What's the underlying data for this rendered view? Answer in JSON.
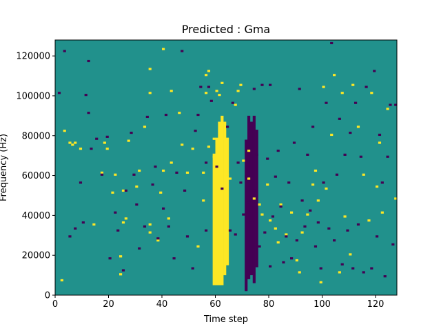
{
  "chart_data": {
    "type": "heatmap",
    "title": "Predicted : Gma",
    "xlabel": "Time step",
    "ylabel": "Frequency (Hz)",
    "xlim": [
      0,
      128
    ],
    "ylim": [
      0,
      128000
    ],
    "x_ticks": [
      0,
      20,
      40,
      60,
      80,
      100,
      120
    ],
    "y_ticks": [
      0,
      20000,
      40000,
      60000,
      80000,
      100000,
      120000
    ],
    "grid": false,
    "legend": "none",
    "colormap": "viridis",
    "levels": {
      "low": -1,
      "mid": 0,
      "high": 1
    },
    "colors": {
      "low": "#440154",
      "mid": "#21918c",
      "high": "#fde725"
    },
    "grid_shape": {
      "time_steps": 128,
      "freq_bins": 128
    },
    "freq_bin_hz": 1000,
    "cells": {
      "high": [
        [
          2,
          7
        ],
        [
          6,
          75
        ],
        [
          3,
          82
        ],
        [
          5,
          76
        ],
        [
          7,
          76
        ],
        [
          9,
          73
        ],
        [
          14,
          35
        ],
        [
          17,
          61
        ],
        [
          18,
          76
        ],
        [
          19,
          73
        ],
        [
          21,
          51
        ],
        [
          22,
          60
        ],
        [
          24,
          10
        ],
        [
          24,
          19
        ],
        [
          25,
          36
        ],
        [
          25,
          52
        ],
        [
          26,
          38
        ],
        [
          27,
          77
        ],
        [
          30,
          54
        ],
        [
          31,
          62
        ],
        [
          33,
          84
        ],
        [
          35,
          31
        ],
        [
          35,
          35
        ],
        [
          35,
          101
        ],
        [
          35,
          113
        ],
        [
          38,
          27
        ],
        [
          39,
          51
        ],
        [
          40,
          62
        ],
        [
          40,
          123
        ],
        [
          42,
          38
        ],
        [
          43,
          66
        ],
        [
          43,
          102
        ],
        [
          46,
          91
        ],
        [
          47,
          75
        ],
        [
          49,
          61
        ],
        [
          51,
          73
        ],
        [
          53,
          24
        ],
        [
          55,
          47
        ],
        [
          55,
          61
        ],
        [
          56,
          101
        ],
        [
          56,
          110
        ],
        [
          57,
          74
        ],
        [
          57,
          112
        ],
        [
          59,
          69
        ],
        [
          59,
          78
        ],
        [
          60,
          102
        ],
        [
          61,
          100
        ],
        [
          62,
          106
        ],
        [
          63,
          78
        ],
        [
          64,
          60
        ],
        [
          65,
          58
        ],
        [
          67,
          95
        ],
        [
          68,
          102
        ],
        [
          69,
          105
        ],
        [
          70,
          67
        ],
        [
          72,
          58
        ],
        [
          72,
          72
        ],
        [
          74,
          48
        ],
        [
          76,
          45
        ],
        [
          77,
          40
        ],
        [
          79,
          55
        ],
        [
          80,
          37
        ],
        [
          82,
          33
        ],
        [
          83,
          26
        ],
        [
          84,
          45
        ],
        [
          86,
          30
        ],
        [
          88,
          41
        ],
        [
          90,
          17
        ],
        [
          91,
          11
        ],
        [
          92,
          31
        ],
        [
          94,
          40
        ],
        [
          96,
          55
        ],
        [
          97,
          62
        ],
        [
          98,
          47
        ],
        [
          99,
          6
        ],
        [
          100,
          104
        ],
        [
          101,
          53
        ],
        [
          103,
          80
        ],
        [
          104,
          110
        ],
        [
          106,
          11
        ],
        [
          107,
          101
        ],
        [
          108,
          39
        ],
        [
          110,
          20
        ],
        [
          111,
          105
        ],
        [
          113,
          84
        ],
        [
          115,
          60
        ],
        [
          117,
          37
        ],
        [
          118,
          101
        ],
        [
          120,
          54
        ],
        [
          121,
          76
        ],
        [
          122,
          41
        ],
        [
          124,
          93
        ],
        [
          127,
          48
        ]
      ],
      "high_bands": [
        {
          "t": 59,
          "from": 5,
          "to": 70
        },
        {
          "t": 60,
          "from": 5,
          "to": 78
        },
        {
          "t": 61,
          "from": 5,
          "to": 86
        },
        {
          "t": 62,
          "from": 5,
          "to": 89
        },
        {
          "t": 63,
          "from": 10,
          "to": 86
        },
        {
          "t": 64,
          "from": 15,
          "to": 78
        }
      ],
      "low": [
        [
          1,
          101
        ],
        [
          3,
          122
        ],
        [
          5,
          29
        ],
        [
          7,
          33
        ],
        [
          9,
          56
        ],
        [
          10,
          36
        ],
        [
          11,
          100
        ],
        [
          12,
          91
        ],
        [
          12,
          117
        ],
        [
          13,
          73
        ],
        [
          15,
          78
        ],
        [
          17,
          60
        ],
        [
          19,
          79
        ],
        [
          20,
          18
        ],
        [
          22,
          41
        ],
        [
          23,
          32
        ],
        [
          25,
          12
        ],
        [
          26,
          52
        ],
        [
          28,
          81
        ],
        [
          29,
          60
        ],
        [
          30,
          45
        ],
        [
          31,
          23
        ],
        [
          33,
          34
        ],
        [
          34,
          89
        ],
        [
          36,
          55
        ],
        [
          37,
          64
        ],
        [
          38,
          28
        ],
        [
          40,
          43
        ],
        [
          41,
          90
        ],
        [
          42,
          34
        ],
        [
          44,
          18
        ],
        [
          45,
          61
        ],
        [
          47,
          122
        ],
        [
          48,
          52
        ],
        [
          49,
          29
        ],
        [
          51,
          13
        ],
        [
          52,
          82
        ],
        [
          53,
          90
        ],
        [
          54,
          104
        ],
        [
          56,
          66
        ],
        [
          56,
          32
        ],
        [
          57,
          104
        ],
        [
          58,
          97
        ],
        [
          60,
          64
        ],
        [
          62,
          53
        ],
        [
          64,
          84
        ],
        [
          65,
          32
        ],
        [
          66,
          96
        ],
        [
          67,
          30
        ],
        [
          68,
          66
        ],
        [
          69,
          56
        ],
        [
          70,
          40
        ],
        [
          71,
          59
        ],
        [
          72,
          46
        ],
        [
          73,
          36
        ],
        [
          74,
          103
        ],
        [
          74,
          52
        ],
        [
          75,
          70
        ],
        [
          76,
          24
        ],
        [
          77,
          105
        ],
        [
          78,
          31
        ],
        [
          79,
          68
        ],
        [
          80,
          14
        ],
        [
          80,
          105
        ],
        [
          81,
          39
        ],
        [
          82,
          59
        ],
        [
          83,
          72
        ],
        [
          84,
          44
        ],
        [
          85,
          16
        ],
        [
          86,
          29
        ],
        [
          87,
          56
        ],
        [
          88,
          18
        ],
        [
          89,
          76
        ],
        [
          90,
          27
        ],
        [
          91,
          103
        ],
        [
          92,
          47
        ],
        [
          93,
          34
        ],
        [
          94,
          70
        ],
        [
          95,
          42
        ],
        [
          96,
          84
        ],
        [
          97,
          24
        ],
        [
          98,
          36
        ],
        [
          99,
          13
        ],
        [
          100,
          56
        ],
        [
          101,
          96
        ],
        [
          102,
          33
        ],
        [
          103,
          126
        ],
        [
          104,
          27
        ],
        [
          105,
          60
        ],
        [
          106,
          88
        ],
        [
          107,
          15
        ],
        [
          108,
          70
        ],
        [
          109,
          32
        ],
        [
          110,
          81
        ],
        [
          111,
          13
        ],
        [
          112,
          96
        ],
        [
          113,
          35
        ],
        [
          114,
          69
        ],
        [
          115,
          11
        ],
        [
          116,
          104
        ],
        [
          118,
          13
        ],
        [
          119,
          112
        ],
        [
          120,
          29
        ],
        [
          121,
          80
        ],
        [
          122,
          56
        ],
        [
          123,
          9
        ],
        [
          124,
          69
        ],
        [
          125,
          95
        ],
        [
          126,
          25
        ],
        [
          127,
          95
        ]
      ],
      "low_bands": [
        {
          "t": 71,
          "from": 2,
          "to": 77
        },
        {
          "t": 72,
          "from": 8,
          "to": 89
        },
        {
          "t": 73,
          "from": 10,
          "to": 86
        },
        {
          "t": 74,
          "from": 6,
          "to": 89
        },
        {
          "t": 75,
          "from": 14,
          "to": 82
        }
      ]
    }
  }
}
